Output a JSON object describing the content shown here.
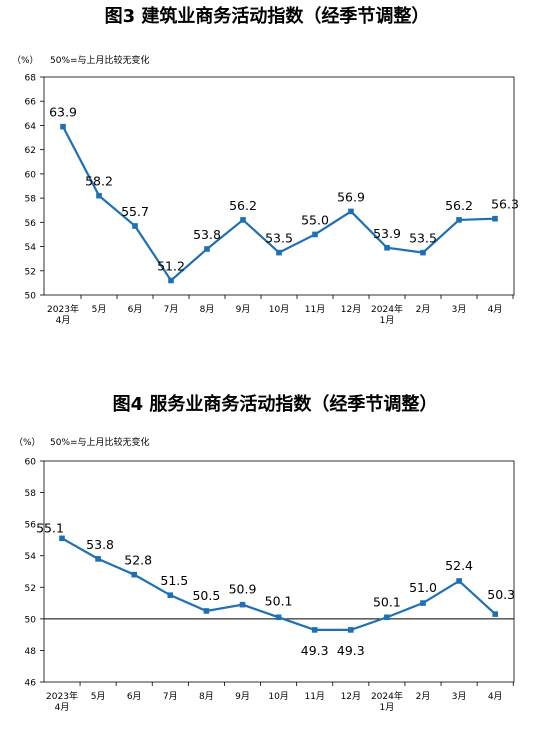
{
  "line_color": "#1f6fb5",
  "chart_data": [
    {
      "type": "line",
      "title": "图3 建筑业商务活动指数（经季节调整）",
      "unit_label": "（%）",
      "note": "50%=与上月比较无变化",
      "categories": [
        [
          "2023年",
          "4月"
        ],
        [
          "5月"
        ],
        [
          "6月"
        ],
        [
          "7月"
        ],
        [
          "8月"
        ],
        [
          "9月"
        ],
        [
          "10月"
        ],
        [
          "11月"
        ],
        [
          "12月"
        ],
        [
          "2024年",
          "1月"
        ],
        [
          "2月"
        ],
        [
          "3月"
        ],
        [
          "4月"
        ]
      ],
      "series": [
        {
          "values": [
            63.9,
            58.2,
            55.7,
            51.2,
            53.8,
            56.2,
            53.5,
            55.0,
            56.9,
            53.9,
            53.5,
            56.2,
            56.3
          ]
        }
      ],
      "value_labels": [
        "63.9",
        "58.2",
        "55.7",
        "51.2",
        "53.8",
        "56.2",
        "53.5",
        "55.0",
        "56.9",
        "53.9",
        "53.5",
        "56.2",
        "56.3"
      ],
      "ylim": [
        50,
        68
      ],
      "yticks": [
        "50",
        "52",
        "54",
        "56",
        "58",
        "60",
        "62",
        "64",
        "66",
        "68"
      ],
      "reference_line": null
    },
    {
      "type": "line",
      "title": "图4 服务业商务活动指数（经季节调整）",
      "unit_label": "（%）",
      "note": "50%=与上月比较无变化",
      "categories": [
        [
          "2023年",
          "4月"
        ],
        [
          "5月"
        ],
        [
          "6月"
        ],
        [
          "7月"
        ],
        [
          "8月"
        ],
        [
          "9月"
        ],
        [
          "10月"
        ],
        [
          "11月"
        ],
        [
          "12月"
        ],
        [
          "2024年",
          "1月"
        ],
        [
          "2月"
        ],
        [
          "3月"
        ],
        [
          "4月"
        ]
      ],
      "series": [
        {
          "values": [
            55.1,
            53.8,
            52.8,
            51.5,
            50.5,
            50.9,
            50.1,
            49.3,
            49.3,
            50.1,
            51.0,
            52.4,
            50.3
          ]
        }
      ],
      "value_labels": [
        "55.1",
        "53.8",
        "52.8",
        "51.5",
        "50.5",
        "50.9",
        "50.1",
        "49.3",
        "49.3",
        "50.1",
        "51.0",
        "52.4",
        "50.3"
      ],
      "ylim": [
        46,
        60
      ],
      "yticks": [
        "46",
        "48",
        "50",
        "52",
        "54",
        "56",
        "58",
        "60"
      ],
      "reference_line": 50
    }
  ]
}
